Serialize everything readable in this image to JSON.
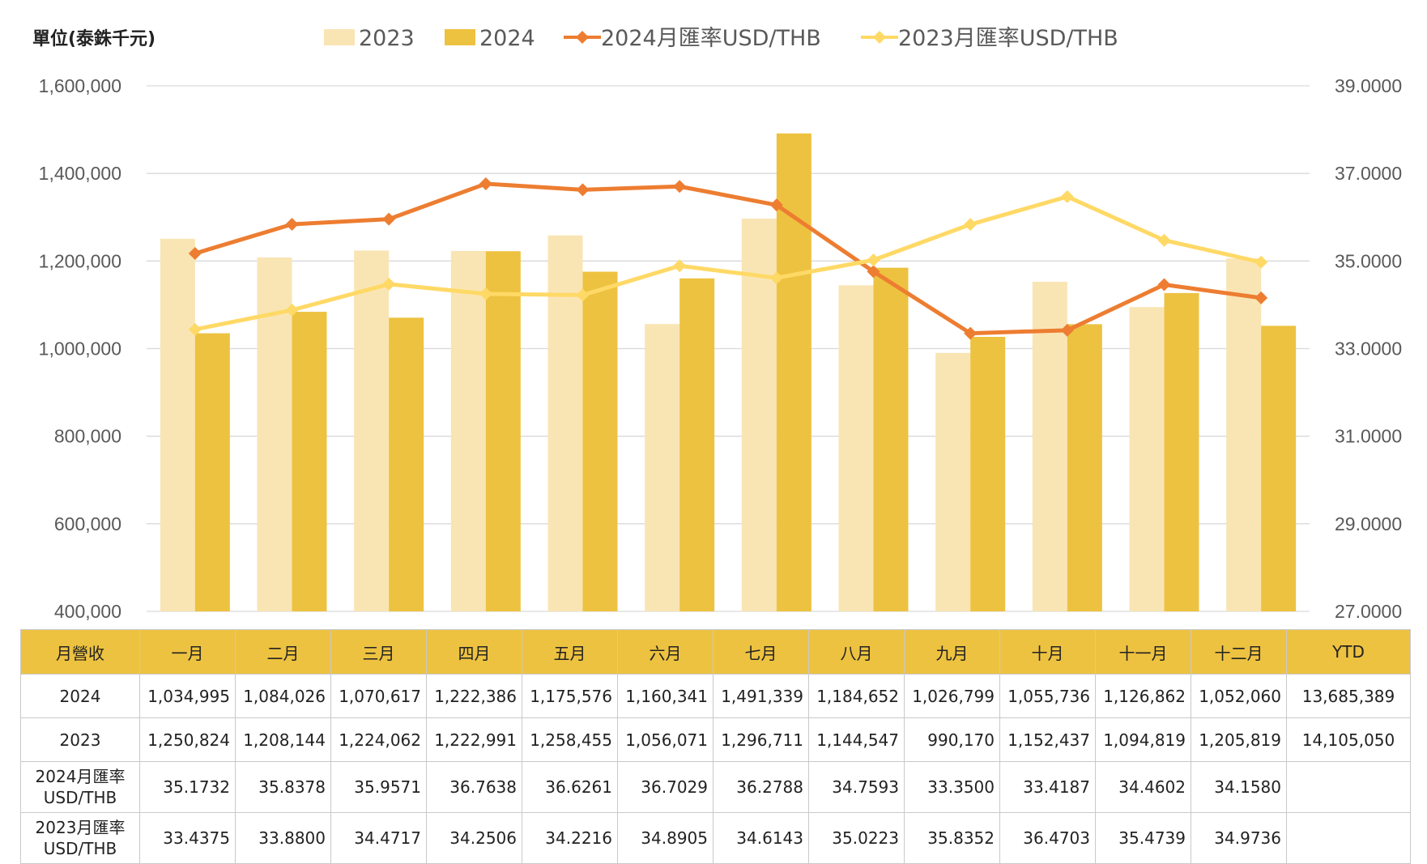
{
  "chart_data": {
    "type": "bar",
    "unit_label": "單位(泰銖千元)",
    "categories": [
      "一月",
      "二月",
      "三月",
      "四月",
      "五月",
      "六月",
      "七月",
      "八月",
      "九月",
      "十月",
      "十一月",
      "十二月"
    ],
    "series": [
      {
        "name": "2023",
        "kind": "bar",
        "axis": "left",
        "color": "#f9e5b4",
        "values": [
          1250824,
          1208144,
          1224062,
          1222991,
          1258455,
          1056071,
          1296711,
          1144547,
          990170,
          1152437,
          1094819,
          1205819
        ]
      },
      {
        "name": "2024",
        "kind": "bar",
        "axis": "left",
        "color": "#edc240",
        "values": [
          1034995,
          1084026,
          1070617,
          1222386,
          1175576,
          1160341,
          1491339,
          1184652,
          1026799,
          1055736,
          1126862,
          1052060
        ]
      },
      {
        "name": "2024月匯率USD/THB",
        "kind": "line",
        "axis": "right",
        "color": "#ed7d31",
        "marker": "diamond",
        "values": [
          35.1732,
          35.8378,
          35.9571,
          36.7638,
          36.6261,
          36.7029,
          36.2788,
          34.7593,
          33.35,
          33.4187,
          34.4602,
          34.158
        ]
      },
      {
        "name": "2023月匯率USD/THB",
        "kind": "line",
        "axis": "right",
        "color": "#ffd966",
        "marker": "diamond",
        "values": [
          33.4375,
          33.88,
          34.4717,
          34.2506,
          34.2216,
          34.8905,
          34.6143,
          35.0223,
          35.8352,
          36.4703,
          35.4739,
          34.9736
        ]
      }
    ],
    "y_left": {
      "min": 400000,
      "max": 1600000,
      "ticks": [
        "400,000",
        "600,000",
        "800,000",
        "1,000,000",
        "1,200,000",
        "1,400,000",
        "1,600,000"
      ]
    },
    "y_right": {
      "min": 27,
      "max": 39,
      "ticks": [
        "27.0000",
        "29.0000",
        "31.0000",
        "33.0000",
        "35.0000",
        "37.0000",
        "39.0000"
      ]
    },
    "grid": true,
    "legend_position": "top"
  },
  "table": {
    "header": [
      "月營收",
      "一月",
      "二月",
      "三月",
      "四月",
      "五月",
      "六月",
      "七月",
      "八月",
      "九月",
      "十月",
      "十一月",
      "十二月",
      "YTD"
    ],
    "rows": [
      {
        "label": "2024",
        "values": [
          "1,034,995",
          "1,084,026",
          "1,070,617",
          "1,222,386",
          "1,175,576",
          "1,160,341",
          "1,491,339",
          "1,184,652",
          "1,026,799",
          "1,055,736",
          "1,126,862",
          "1,052,060"
        ],
        "ytd": "13,685,389"
      },
      {
        "label": "2023",
        "values": [
          "1,250,824",
          "1,208,144",
          "1,224,062",
          "1,222,991",
          "1,258,455",
          "1,056,071",
          "1,296,711",
          "1,144,547",
          "990,170",
          "1,152,437",
          "1,094,819",
          "1,205,819"
        ],
        "ytd": "14,105,050"
      },
      {
        "label_line1": "2024月匯率",
        "label_line2": "USD/THB",
        "values": [
          "35.1732",
          "35.8378",
          "35.9571",
          "36.7638",
          "36.6261",
          "36.7029",
          "36.2788",
          "34.7593",
          "33.3500",
          "33.4187",
          "34.4602",
          "34.1580"
        ],
        "ytd": ""
      },
      {
        "label_line1": "2023月匯率",
        "label_line2": "USD/THB",
        "values": [
          "33.4375",
          "33.8800",
          "34.4717",
          "34.2506",
          "34.2216",
          "34.8905",
          "34.6143",
          "35.0223",
          "35.8352",
          "36.4703",
          "35.4739",
          "34.9736"
        ],
        "ytd": ""
      }
    ]
  }
}
